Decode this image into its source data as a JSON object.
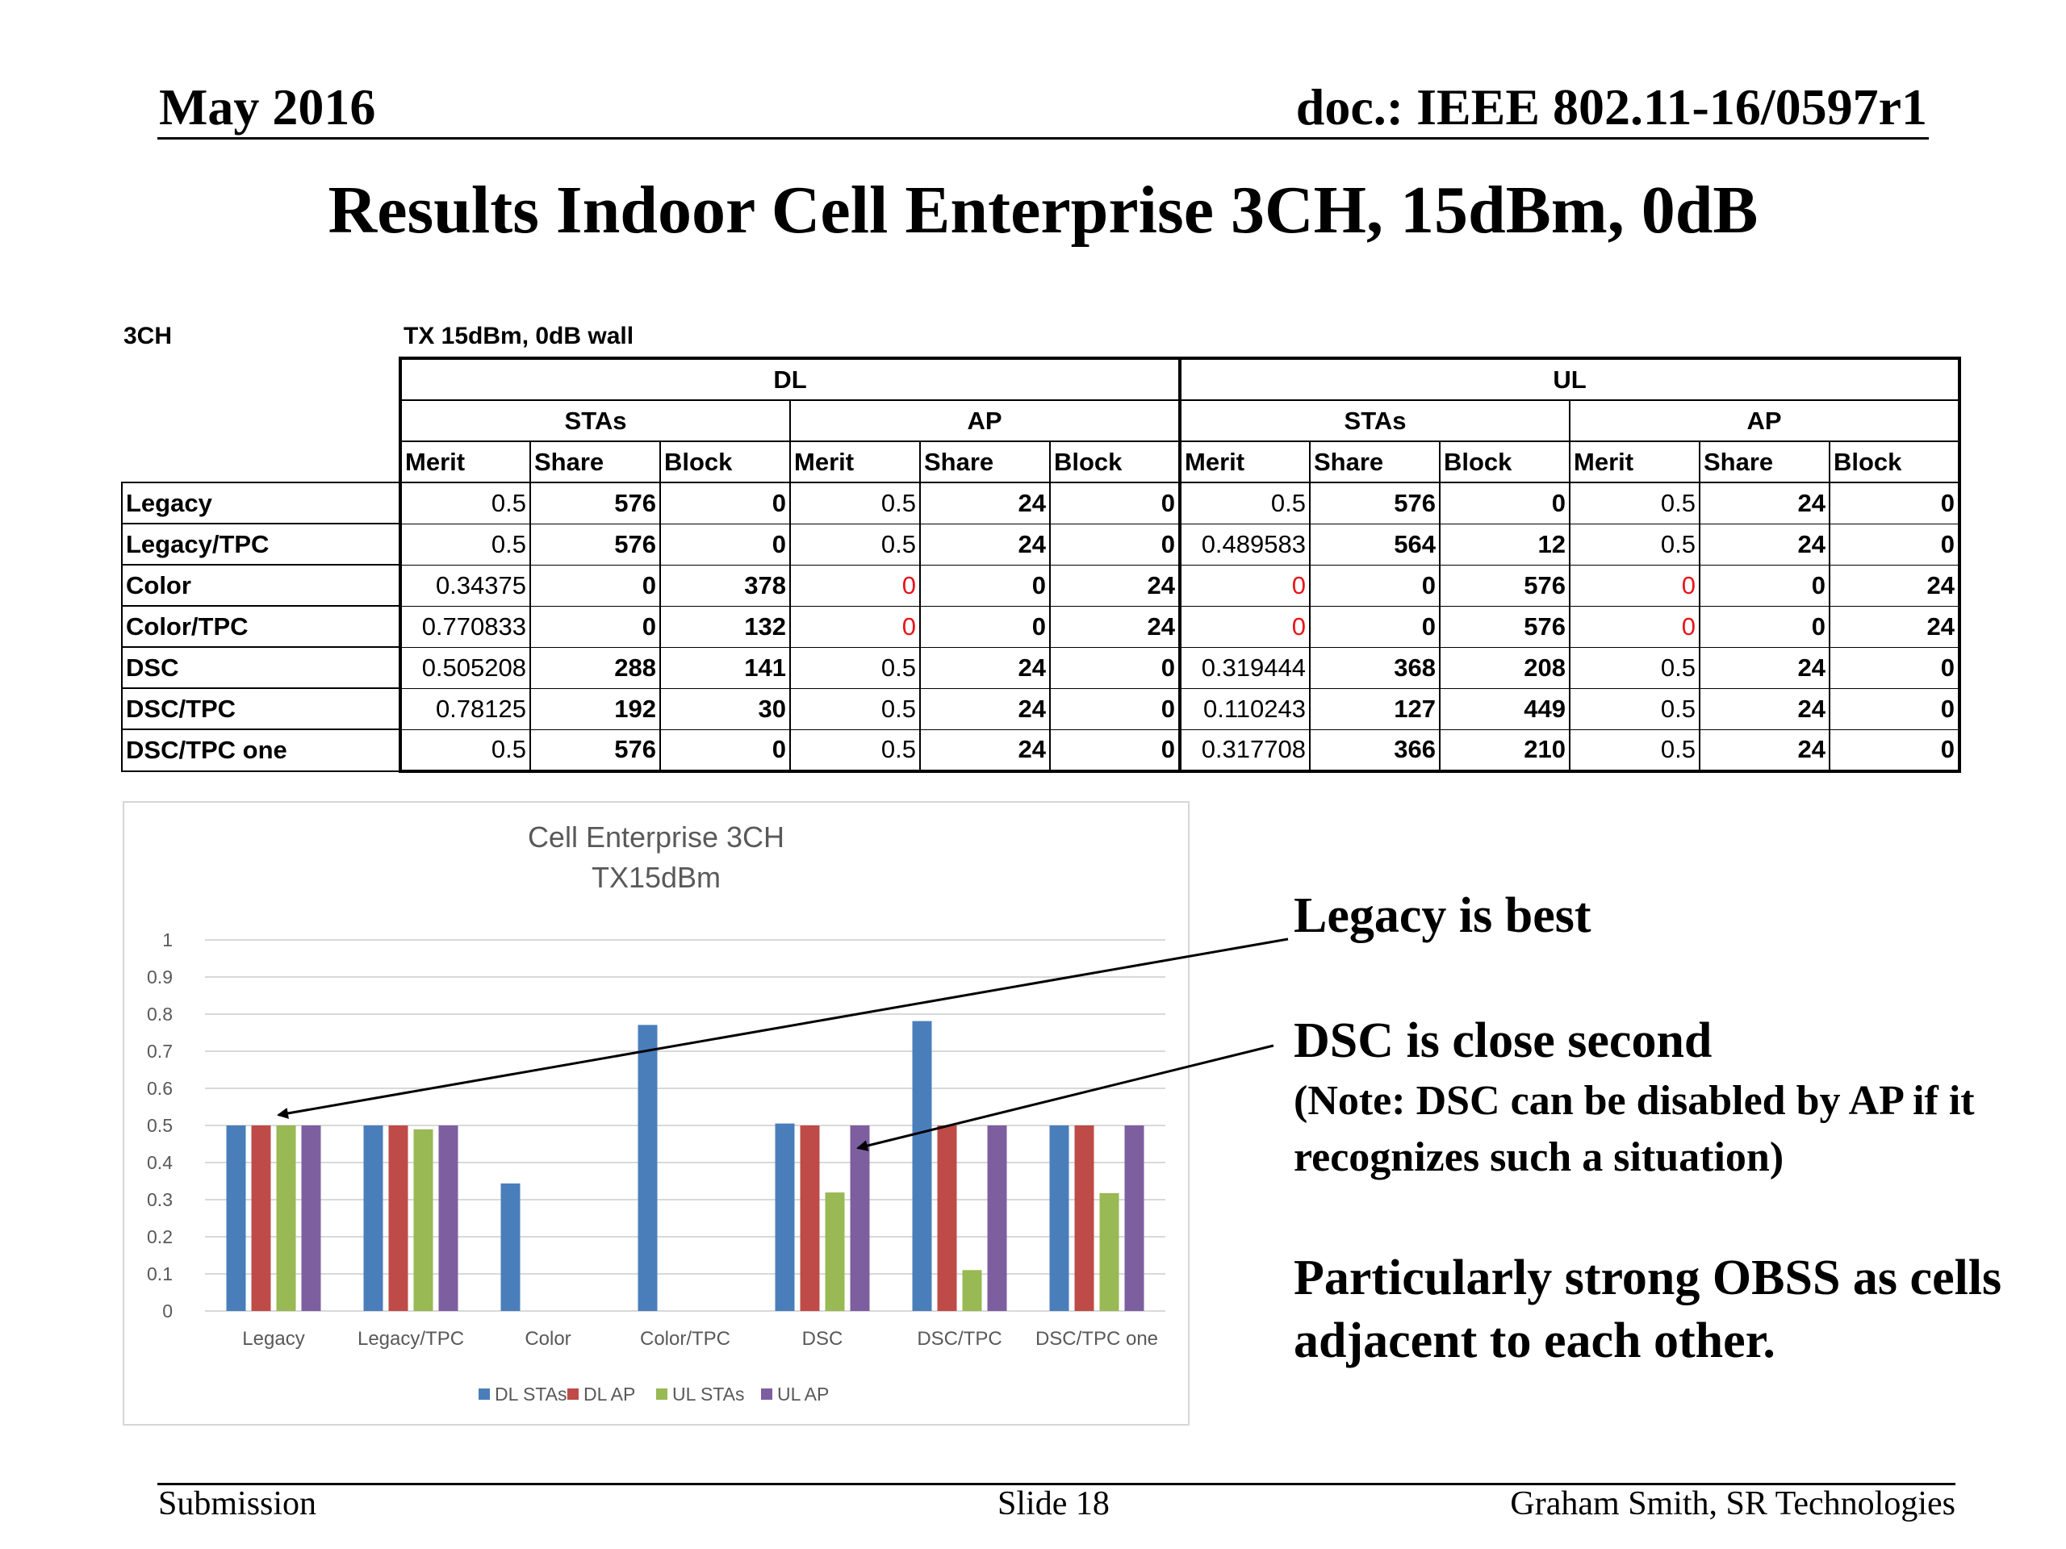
{
  "header": {
    "date": "May 2016",
    "doc": "doc.: IEEE 802.11-16/0597r1"
  },
  "slide_title": "Results Indoor Cell Enterprise 3CH, 15dBm, 0dB",
  "table": {
    "caption_left": "3CH",
    "caption_right": "TX 15dBm, 0dB wall",
    "groups": [
      "DL",
      "UL"
    ],
    "subgroups": [
      "STAs",
      "AP",
      "STAs",
      "AP"
    ],
    "columns": [
      "Merit",
      "Share",
      "Block",
      "Merit",
      "Share",
      "Block",
      "Merit",
      "Share",
      "Block",
      "Merit",
      "Share",
      "Block"
    ],
    "rows": [
      {
        "label": "Legacy",
        "cells": [
          "0.5",
          "576",
          "0",
          "0.5",
          "24",
          "0",
          "0.5",
          "576",
          "0",
          "0.5",
          "24",
          "0"
        ]
      },
      {
        "label": "Legacy/TPC",
        "cells": [
          "0.5",
          "576",
          "0",
          "0.5",
          "24",
          "0",
          "0.489583",
          "564",
          "12",
          "0.5",
          "24",
          "0"
        ]
      },
      {
        "label": "Color",
        "cells": [
          "0.34375",
          "0",
          "378",
          "0",
          "0",
          "24",
          "0",
          "0",
          "576",
          "0",
          "0",
          "24"
        ]
      },
      {
        "label": "Color/TPC",
        "cells": [
          "0.770833",
          "0",
          "132",
          "0",
          "0",
          "24",
          "0",
          "0",
          "576",
          "0",
          "0",
          "24"
        ]
      },
      {
        "label": "DSC",
        "cells": [
          "0.505208",
          "288",
          "141",
          "0.5",
          "24",
          "0",
          "0.319444",
          "368",
          "208",
          "0.5",
          "24",
          "0"
        ]
      },
      {
        "label": "DSC/TPC",
        "cells": [
          "0.78125",
          "192",
          "30",
          "0.5",
          "24",
          "0",
          "0.110243",
          "127",
          "449",
          "0.5",
          "24",
          "0"
        ]
      },
      {
        "label": "DSC/TPC one",
        "cells": [
          "0.5",
          "576",
          "0",
          "0.5",
          "24",
          "0",
          "0.317708",
          "366",
          "210",
          "0.5",
          "24",
          "0"
        ]
      }
    ],
    "highlight_color": "#e8141b"
  },
  "chart_data": {
    "type": "bar",
    "title": "Cell Enterprise 3CH",
    "subtitle": "TX15dBm",
    "categories": [
      "Legacy",
      "Legacy/TPC",
      "Color",
      "Color/TPC",
      "DSC",
      "DSC/TPC",
      "DSC/TPC one"
    ],
    "series": [
      {
        "name": "DL STAs",
        "color": "#4a7ebb",
        "values": [
          0.5,
          0.5,
          0.34375,
          0.770833,
          0.505208,
          0.78125,
          0.5
        ]
      },
      {
        "name": "DL AP",
        "color": "#be4b48",
        "values": [
          0.5,
          0.5,
          0,
          0,
          0.5,
          0.5,
          0.5
        ]
      },
      {
        "name": "UL STAs",
        "color": "#98b954",
        "values": [
          0.5,
          0.489583,
          0,
          0,
          0.319444,
          0.110243,
          0.317708
        ]
      },
      {
        "name": "UL AP",
        "color": "#7d5fa0",
        "values": [
          0.5,
          0.5,
          0,
          0,
          0.5,
          0.5,
          0.5
        ]
      }
    ],
    "y_ticks": [
      "0",
      "0.1",
      "0.2",
      "0.3",
      "0.4",
      "0.5",
      "0.6",
      "0.7",
      "0.8",
      "0.9",
      "1"
    ],
    "ylim": [
      0,
      1
    ],
    "grid": true,
    "legend_position": "bottom"
  },
  "callouts": {
    "legacy": "Legacy is best",
    "dsc": "DSC is close second",
    "note": "(Note: DSC can be disabled by AP if it recognizes such a situation)",
    "obss": "Particularly strong OBSS as cells adjacent to each other."
  },
  "footer": {
    "left": "Submission",
    "center": "Slide 18",
    "right": "Graham Smith, SR Technologies"
  }
}
